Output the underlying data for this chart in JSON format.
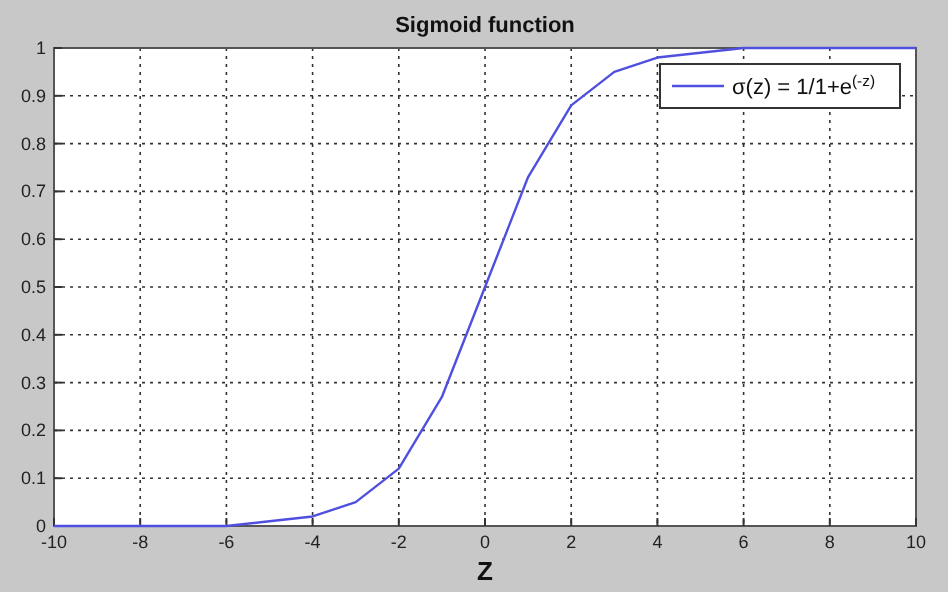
{
  "chart_data": {
    "type": "line",
    "title": "Sigmoid function",
    "xlabel": "Z",
    "x": [
      -10,
      -9,
      -8,
      -7,
      -6,
      -5,
      -4,
      -3,
      -2,
      -1,
      0,
      1,
      2,
      3,
      4,
      5,
      6,
      7,
      8,
      9,
      10
    ],
    "series": [
      {
        "name": "σ(z) = 1/1+e$^{(-z)}$",
        "color": "#5050e0",
        "values": [
          0,
          0,
          0,
          0,
          0,
          0.01,
          0.02,
          0.05,
          0.12,
          0.27,
          0.5,
          0.73,
          0.88,
          0.95,
          0.98,
          0.99,
          1,
          1,
          1,
          1,
          1
        ]
      }
    ],
    "xlim": [
      -10,
      10
    ],
    "xticks": [
      -10,
      -8,
      -6,
      -4,
      -2,
      0,
      2,
      4,
      6,
      8,
      10
    ],
    "ylim": [
      0,
      1
    ],
    "yticks": [
      0,
      0.1,
      0.2,
      0.3,
      0.4,
      0.5,
      0.6,
      0.7,
      0.8,
      0.9,
      1
    ],
    "grid": true,
    "legend": "top right",
    "marker": "none",
    "line_style": "solid"
  }
}
